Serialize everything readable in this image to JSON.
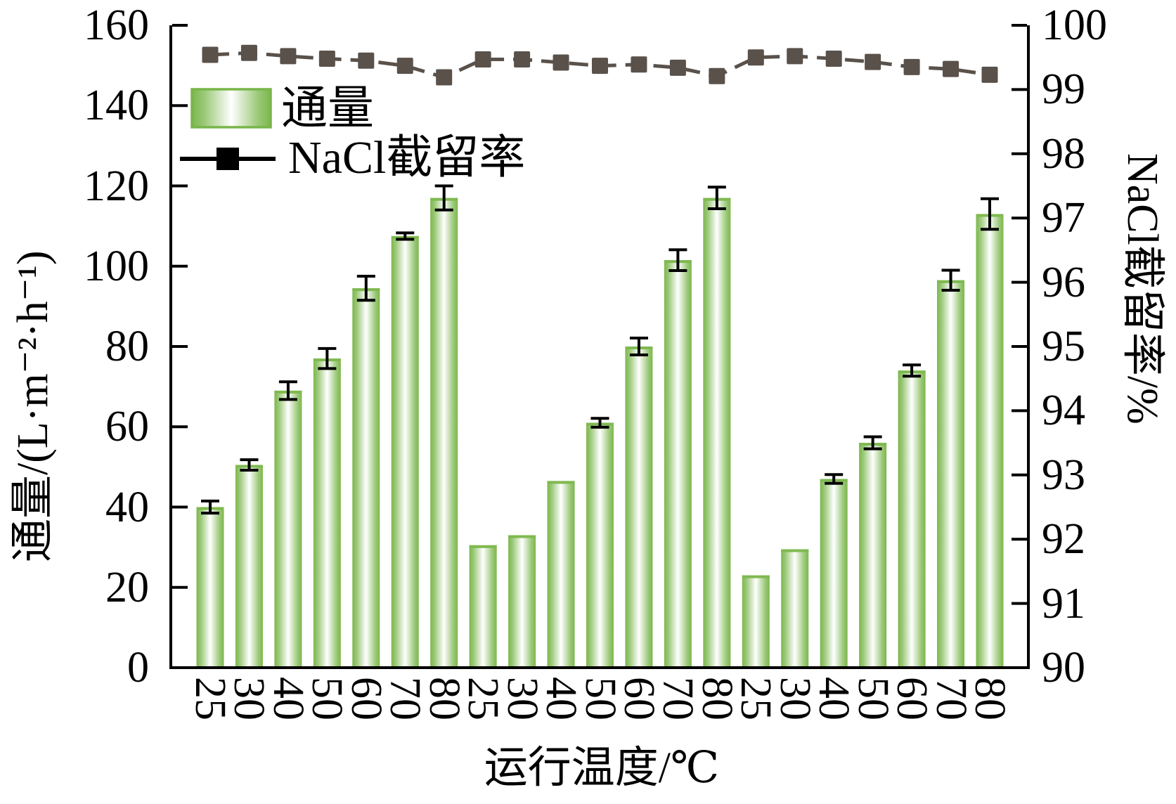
{
  "figure": {
    "background": "#ffffff"
  },
  "axes": {
    "left_title": "通量/(L·m⁻²·h⁻¹)",
    "right_title": "NaCl截留率/%",
    "x_title": "运行温度/℃"
  },
  "legend": {
    "bar_label": "通量",
    "line_label": "NaCl截留率"
  },
  "colors": {
    "bar_edge": "#7cb74c",
    "bar_soft": "#9cc979",
    "bar_mid": "#ffffff",
    "bar_cap": "#7fb950",
    "legend_swatch_border": "#79b549",
    "line": "#59514a",
    "legend_line": "#000000",
    "error": "#000000",
    "axis": "#000000"
  },
  "chart_data": {
    "type": "bar",
    "overlay_type": "line",
    "grid": false,
    "legend_position": "top-left-inside",
    "categories": [
      "25",
      "30",
      "40",
      "50",
      "60",
      "70",
      "80",
      "25",
      "30",
      "40",
      "50",
      "60",
      "70",
      "80",
      "25",
      "30",
      "40",
      "50",
      "60",
      "70",
      "80"
    ],
    "x_axis": {
      "label": "运行温度/℃"
    },
    "left_axis": {
      "label": "通量/(L·m⁻²·h⁻¹)",
      "min": 0,
      "max": 160,
      "ticks": [
        "0",
        "20",
        "40",
        "60",
        "80",
        "100",
        "120",
        "140",
        "160"
      ]
    },
    "right_axis": {
      "label": "NaCl截留率/%",
      "min": 90,
      "max": 100,
      "ticks": [
        "90",
        "91",
        "92",
        "93",
        "94",
        "95",
        "96",
        "97",
        "98",
        "99",
        "100"
      ]
    },
    "series": [
      {
        "name": "通量",
        "type": "bar",
        "axis": "left",
        "values": [
          40,
          50.5,
          69,
          77,
          94.5,
          107.5,
          117,
          30.5,
          33,
          46.5,
          61,
          80,
          101.5,
          117,
          23,
          29.5,
          47,
          56,
          74,
          96.5,
          113
        ],
        "errors": [
          1.5,
          1.3,
          2.2,
          2.5,
          3.0,
          0.8,
          3.0,
          0,
          0,
          0,
          1.1,
          2.1,
          2.6,
          2.7,
          0,
          0,
          1.1,
          1.5,
          1.4,
          2.5,
          3.8
        ]
      },
      {
        "name": "NaCl截留率",
        "type": "line",
        "axis": "right",
        "values": [
          99.54,
          99.57,
          99.52,
          99.48,
          99.45,
          99.37,
          99.19,
          99.47,
          99.47,
          99.42,
          99.37,
          99.39,
          99.34,
          99.21,
          99.5,
          99.52,
          99.48,
          99.43,
          99.35,
          99.32,
          99.23
        ]
      }
    ]
  }
}
